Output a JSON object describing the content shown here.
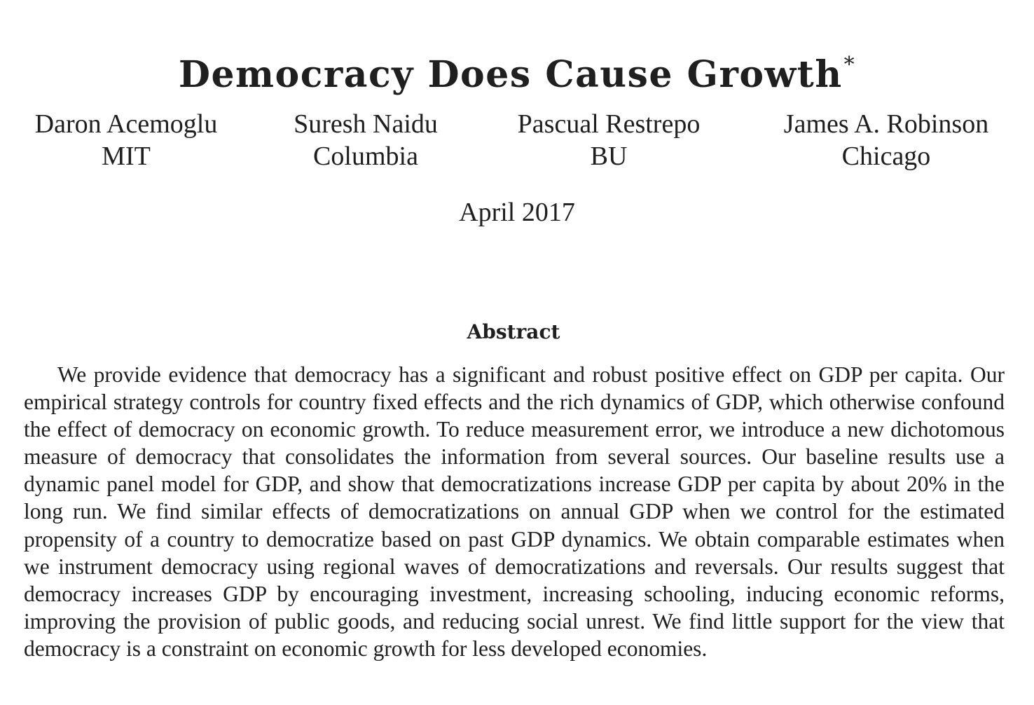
{
  "paper": {
    "title": "Democracy Does Cause Growth",
    "title_footnote_mark": "*",
    "authors": [
      {
        "name": "Daron Acemoglu",
        "affiliation": "MIT"
      },
      {
        "name": "Suresh Naidu",
        "affiliation": "Columbia"
      },
      {
        "name": "Pascual Restrepo",
        "affiliation": "BU"
      },
      {
        "name": "James A. Robinson",
        "affiliation": "Chicago"
      }
    ],
    "date": "April 2017",
    "abstract_heading": "Abstract",
    "abstract_text": "We provide evidence that democracy has a significant and robust positive effect on GDP per capita. Our empirical strategy controls for country fixed effects and the rich dynamics of GDP, which otherwise confound the effect of democracy on economic growth. To reduce measurement error, we introduce a new dichotomous measure of democracy that consolidates the information from several sources. Our baseline results use a dynamic panel model for GDP, and show that democratizations increase GDP per capita by about 20% in the long run. We find similar effects of democratizations on annual GDP when we control for the estimated propensity of a country to democratize based on past GDP dynamics. We obtain comparable estimates when we instrument democracy using regional waves of democratizations and reversals. Our results suggest that democ­racy increases GDP by encouraging investment, increasing schooling, inducing economic reforms, improving the provision of public goods, and reducing social unrest. We find little support for the view that democracy is a constraint on economic growth for less developed economies."
  }
}
